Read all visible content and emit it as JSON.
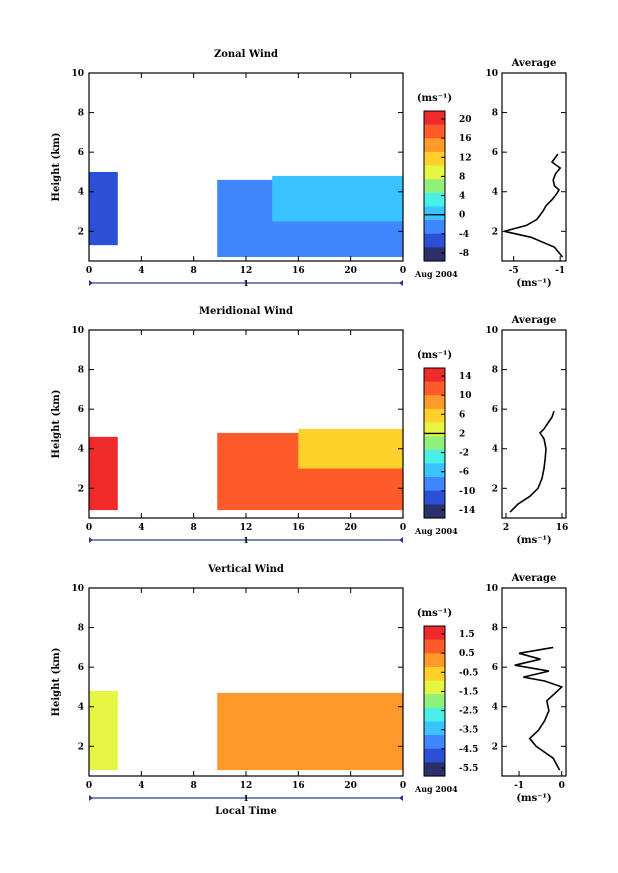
{
  "chart_data": [
    {
      "type": "heatmap",
      "title": "Zonal Wind",
      "ylabel": "Height (km)",
      "xlabel": "",
      "xlim": [
        0,
        24
      ],
      "ylim": [
        0.5,
        10
      ],
      "xticks": [
        "0",
        "4",
        "8",
        "12",
        "16",
        "20",
        "0"
      ],
      "yticks": [
        "2",
        "4",
        "6",
        "8",
        "10"
      ],
      "date_axis": {
        "day_label": "1",
        "month_label": "Aug 2004"
      },
      "colorbar": {
        "unit": "(ms⁻¹)",
        "ticks": [
          "20",
          "16",
          "12",
          "8",
          "4",
          "0",
          "-4",
          "-8"
        ],
        "range": [
          -10,
          22
        ],
        "contour_at": "0"
      },
      "blocks": [
        {
          "t0": 0,
          "t1": 2.2,
          "h0": 1.3,
          "h1": 5.0,
          "value": -8
        },
        {
          "t0": 9.8,
          "t1": 24,
          "h0": 0.7,
          "h1": 4.6,
          "value": -3
        },
        {
          "t0": 14,
          "t1": 24,
          "h0": 2.5,
          "h1": 4.8,
          "value": 1
        }
      ],
      "average_profile": {
        "title": "Average",
        "unit": "(ms⁻¹)",
        "xticks": [
          "-5",
          "-1"
        ],
        "xlim": [
          -6,
          -0.5
        ],
        "yticks": [
          "2",
          "4",
          "6",
          "8",
          "10"
        ],
        "height": [
          0.7,
          1.2,
          1.7,
          2.0,
          2.3,
          2.6,
          3.0,
          3.3,
          3.6,
          3.9,
          4.1,
          4.3,
          4.6,
          4.9,
          5.2,
          5.5,
          5.9
        ],
        "value": [
          -0.8,
          -1.5,
          -3.5,
          -5.8,
          -3.9,
          -3.0,
          -2.5,
          -2.2,
          -1.7,
          -1.3,
          -1.1,
          -1.5,
          -1.6,
          -1.4,
          -1.0,
          -1.7,
          -1.2
        ]
      }
    },
    {
      "type": "heatmap",
      "title": "Meridional Wind",
      "ylabel": "Height (km)",
      "xlabel": "",
      "xlim": [
        0,
        24
      ],
      "ylim": [
        0.5,
        10
      ],
      "xticks": [
        "0",
        "4",
        "8",
        "12",
        "16",
        "20",
        "0"
      ],
      "yticks": [
        "2",
        "4",
        "6",
        "8",
        "10"
      ],
      "date_axis": {
        "day_label": "1",
        "month_label": "Aug 2004"
      },
      "colorbar": {
        "unit": "(ms⁻¹)",
        "ticks": [
          "14",
          "10",
          "6",
          "2",
          "-2",
          "-6",
          "-10",
          "-14"
        ],
        "range": [
          -16,
          16
        ],
        "contour_at": "2"
      },
      "blocks": [
        {
          "t0": 0,
          "t1": 2.2,
          "h0": 0.9,
          "h1": 4.6,
          "value": 15
        },
        {
          "t0": 9.8,
          "t1": 24,
          "h0": 0.9,
          "h1": 4.8,
          "value": 13
        },
        {
          "t0": 16,
          "t1": 24,
          "h0": 3.0,
          "h1": 5.0,
          "value": 7
        }
      ],
      "average_profile": {
        "title": "Average",
        "unit": "(ms⁻¹)",
        "xticks": [
          "2",
          "16"
        ],
        "xlim": [
          1,
          17
        ],
        "yticks": [
          "2",
          "4",
          "6",
          "8",
          "10"
        ],
        "height": [
          0.8,
          1.2,
          1.6,
          2.0,
          2.5,
          3.0,
          3.5,
          4.0,
          4.5,
          4.8,
          5.0,
          5.3,
          5.6,
          5.9
        ],
        "value": [
          3,
          5,
          8,
          10,
          11,
          11.5,
          11.8,
          12,
          11.5,
          10.5,
          11.5,
          12.5,
          13.5,
          14
        ]
      }
    },
    {
      "type": "heatmap",
      "title": "Vertical Wind",
      "ylabel": "Height (km)",
      "xlabel": "Local Time",
      "xlim": [
        0,
        24
      ],
      "ylim": [
        0.5,
        10
      ],
      "xticks": [
        "0",
        "4",
        "8",
        "12",
        "16",
        "20",
        "0"
      ],
      "yticks": [
        "2",
        "4",
        "6",
        "8",
        "10"
      ],
      "date_axis": {
        "day_label": "1",
        "month_label": "Aug 2004"
      },
      "colorbar": {
        "unit": "(ms⁻¹)",
        "ticks": [
          "1.5",
          "0.5",
          "-0.5",
          "-1.5",
          "-2.5",
          "-3.5",
          "-4.5",
          "-5.5"
        ],
        "range": [
          -6.5,
          2
        ],
        "contour_at": ""
      },
      "blocks": [
        {
          "t0": 0,
          "t1": 2.2,
          "h0": 0.8,
          "h1": 4.8,
          "value": -1.5
        },
        {
          "t0": 9.8,
          "t1": 24,
          "h0": 0.8,
          "h1": 4.7,
          "value": 0.3
        }
      ],
      "average_profile": {
        "title": "Average",
        "unit": "(ms⁻¹)",
        "xticks": [
          "-1",
          "0"
        ],
        "xlim": [
          -1.4,
          0.1
        ],
        "yticks": [
          "2",
          "4",
          "6",
          "8",
          "10"
        ],
        "height": [
          0.8,
          1.4,
          2.0,
          2.4,
          2.8,
          3.3,
          3.8,
          4.3,
          4.8,
          5.0,
          5.3,
          5.5,
          5.8,
          6.1,
          6.4,
          6.7,
          7.0
        ],
        "value": [
          -0.05,
          -0.2,
          -0.6,
          -0.75,
          -0.55,
          -0.4,
          -0.3,
          -0.35,
          -0.1,
          0.0,
          -0.4,
          -0.9,
          -0.3,
          -1.1,
          -0.5,
          -1.0,
          -0.2
        ]
      }
    }
  ]
}
